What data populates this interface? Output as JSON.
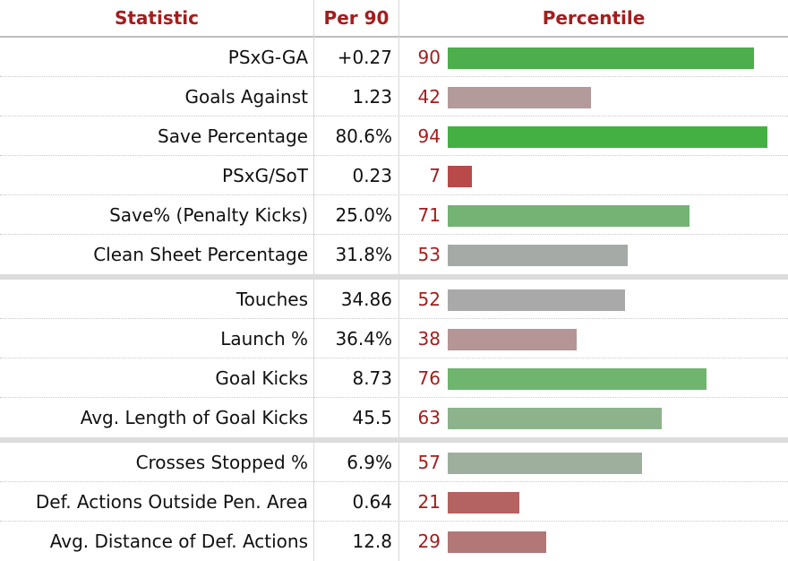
{
  "header": {
    "statistic": "Statistic",
    "per90": "Per 90",
    "percentile": "Percentile"
  },
  "chart_data": {
    "type": "bar",
    "groups": [
      [
        {
          "stat": "PSxG-GA",
          "per90": "+0.27",
          "percentile": 90,
          "color": "#4cae4c"
        },
        {
          "stat": "Goals Against",
          "per90": "1.23",
          "percentile": 42,
          "color": "#b49b9b"
        },
        {
          "stat": "Save Percentage",
          "per90": "80.6%",
          "percentile": 94,
          "color": "#44b044"
        },
        {
          "stat": "PSxG/SoT",
          "per90": "0.23",
          "percentile": 7,
          "color": "#b84a4a"
        },
        {
          "stat": "Save% (Penalty Kicks)",
          "per90": "25.0%",
          "percentile": 71,
          "color": "#74b374"
        },
        {
          "stat": "Clean Sheet Percentage",
          "per90": "31.8%",
          "percentile": 53,
          "color": "#a6aaa6"
        }
      ],
      [
        {
          "stat": "Touches",
          "per90": "34.86",
          "percentile": 52,
          "color": "#a9a9a9"
        },
        {
          "stat": "Launch %",
          "per90": "36.4%",
          "percentile": 38,
          "color": "#b59595"
        },
        {
          "stat": "Goal Kicks",
          "per90": "8.73",
          "percentile": 76,
          "color": "#6fb46f"
        },
        {
          "stat": "Avg. Length of Goal Kicks",
          "per90": "45.5",
          "percentile": 63,
          "color": "#8db38d"
        }
      ],
      [
        {
          "stat": "Crosses Stopped %",
          "per90": "6.9%",
          "percentile": 57,
          "color": "#9eaf9e"
        },
        {
          "stat": "Def. Actions Outside Pen. Area",
          "per90": "0.64",
          "percentile": 21,
          "color": "#b56262"
        },
        {
          "stat": "Avg. Distance of Def. Actions",
          "per90": "12.8",
          "percentile": 29,
          "color": "#b27878"
        }
      ]
    ],
    "xlim": [
      0,
      100
    ]
  }
}
